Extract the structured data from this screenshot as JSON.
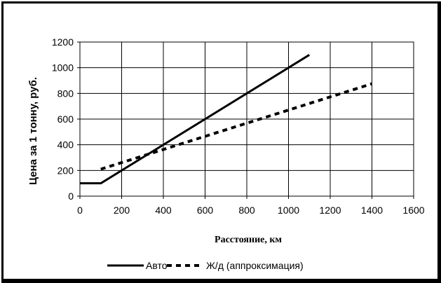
{
  "chart_data": {
    "type": "line",
    "title": "",
    "xlabel": "Расстояние, км",
    "ylabel": "Цена за 1 тонну, руб.",
    "xlim": [
      0,
      1600
    ],
    "ylim": [
      0,
      1200
    ],
    "x_ticks": [
      "0",
      "200",
      "400",
      "600",
      "800",
      "1000",
      "1200",
      "1400",
      "1600"
    ],
    "y_ticks": [
      "0",
      "200",
      "400",
      "600",
      "800",
      "1000",
      "1200"
    ],
    "grid": true,
    "legend_position": "bottom",
    "series": [
      {
        "name": "Авто",
        "style": "solid",
        "color": "#000000",
        "x": [
          0,
          100,
          1100
        ],
        "y": [
          100,
          100,
          1100
        ]
      },
      {
        "name": "Ж/д (аппроксимация)",
        "style": "dashed",
        "color": "#000000",
        "x": [
          100,
          1400
        ],
        "y": [
          210,
          875
        ]
      }
    ]
  }
}
